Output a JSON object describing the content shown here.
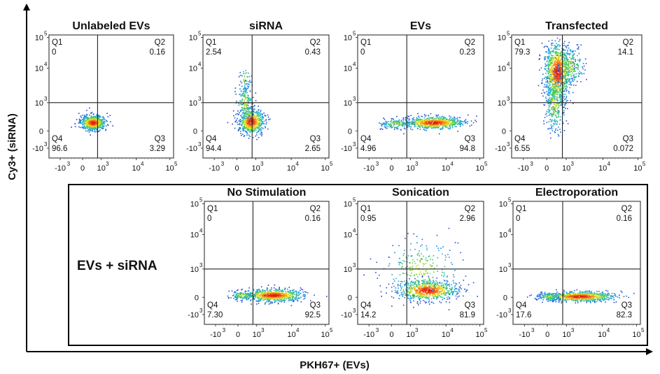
{
  "figure": {
    "x_axis_label": "PKH67+ (EVs)",
    "y_axis_label": "Cy3+ (siRNA)",
    "group_label": "EVs + siRNA"
  },
  "chart_data": [
    {
      "type": "scatter",
      "title": "Unlabeled EVs",
      "xlabel": "PKH67+ (EVs)",
      "ylabel": "Cy3+ (siRNA)",
      "xscale": "biexponential",
      "yscale": "biexponential",
      "x_ticks": [
        "-10^3",
        "0",
        "10^3",
        "10^4",
        "10^5"
      ],
      "y_ticks": [
        "10^5",
        "10^4",
        "10^3",
        "0",
        "-10^3"
      ],
      "quadrants": {
        "Q1": "0",
        "Q2": "0.16",
        "Q3": "3.29",
        "Q4": "96.6"
      },
      "population": {
        "x_center": 0.45,
        "y_center": 0.45,
        "spread": "tight"
      }
    },
    {
      "type": "scatter",
      "title": "siRNA",
      "xlabel": "PKH67+ (EVs)",
      "ylabel": "Cy3+ (siRNA)",
      "xscale": "biexponential",
      "yscale": "biexponential",
      "x_ticks": [
        "-10^3",
        "0",
        "10^3",
        "10^4",
        "10^5"
      ],
      "y_ticks": [
        "10^5",
        "10^4",
        "10^3",
        "0",
        "-10^3"
      ],
      "quadrants": {
        "Q1": "2.54",
        "Q2": "0.43",
        "Q3": "2.65",
        "Q4": "94.4"
      },
      "population": {
        "x_center": 0.5,
        "y_center": 0.6,
        "spread": "tight with upward tail"
      }
    },
    {
      "type": "scatter",
      "title": "EVs",
      "xlabel": "PKH67+ (EVs)",
      "ylabel": "Cy3+ (siRNA)",
      "xscale": "biexponential",
      "yscale": "biexponential",
      "x_ticks": [
        "-10^3",
        "0",
        "10^3",
        "10^4",
        "10^5"
      ],
      "y_ticks": [
        "10^5",
        "10^4",
        "10^3",
        "0",
        "-10^3"
      ],
      "quadrants": {
        "Q1": "0",
        "Q2": "0.23",
        "Q3": "94.8",
        "Q4": "4.96"
      },
      "population": {
        "x_center": 3.5,
        "y_center": 0.2,
        "spread": "horizontal band"
      }
    },
    {
      "type": "scatter",
      "title": "Transfected",
      "xlabel": "PKH67+ (EVs)",
      "ylabel": "Cy3+ (siRNA)",
      "xscale": "biexponential",
      "yscale": "biexponential",
      "x_ticks": [
        "-10^3",
        "0",
        "10^3",
        "10^4",
        "10^5"
      ],
      "y_ticks": [
        "10^5",
        "10^4",
        "10^3",
        "0",
        "-10^3"
      ],
      "quadrants": {
        "Q1": "79.3",
        "Q2": "14.1",
        "Q3": "0.072",
        "Q4": "6.55"
      },
      "population": {
        "x_center": 0.5,
        "y_center": 3.7,
        "spread": "vertical column"
      }
    },
    {
      "type": "scatter",
      "title": "No Stimulation",
      "xlabel": "PKH67+ (EVs)",
      "ylabel": "Cy3+ (siRNA)",
      "xscale": "biexponential",
      "yscale": "biexponential",
      "x_ticks": [
        "-10^3",
        "0",
        "10^3",
        "10^4",
        "10^5"
      ],
      "y_ticks": [
        "10^5",
        "10^4",
        "10^3",
        "0",
        "-10^3"
      ],
      "quadrants": {
        "Q1": "0",
        "Q2": "0.16",
        "Q3": "92.5",
        "Q4": "7.30"
      },
      "population": {
        "x_center": 3.3,
        "y_center": 0.3,
        "spread": "horizontal band"
      }
    },
    {
      "type": "scatter",
      "title": "Sonication",
      "xlabel": "PKH67+ (EVs)",
      "ylabel": "Cy3+ (siRNA)",
      "xscale": "biexponential",
      "yscale": "biexponential",
      "x_ticks": [
        "-10^3",
        "0",
        "10^3",
        "10^4",
        "10^5"
      ],
      "y_ticks": [
        "10^5",
        "10^4",
        "10^3",
        "0",
        "-10^3"
      ],
      "quadrants": {
        "Q1": "0.95",
        "Q2": "2.96",
        "Q3": "81.9",
        "Q4": "14.2"
      },
      "population": {
        "x_center": 3.2,
        "y_center": 0.5,
        "spread": "band with scattered upward cloud"
      }
    },
    {
      "type": "scatter",
      "title": "Electroporation",
      "xlabel": "PKH67+ (EVs)",
      "ylabel": "Cy3+ (siRNA)",
      "xscale": "biexponential",
      "yscale": "biexponential",
      "x_ticks": [
        "-10^3",
        "0",
        "10^3",
        "10^4",
        "10^5"
      ],
      "y_ticks": [
        "10^5",
        "10^4",
        "10^3",
        "0",
        "-10^3"
      ],
      "quadrants": {
        "Q1": "0",
        "Q2": "0.16",
        "Q3": "82.3",
        "Q4": "17.6"
      },
      "population": {
        "x_center": 3.4,
        "y_center": 0.3,
        "spread": "horizontal band"
      }
    }
  ]
}
